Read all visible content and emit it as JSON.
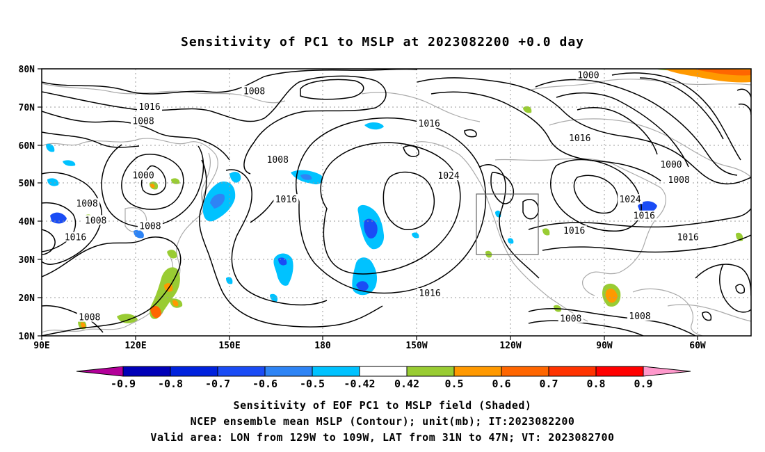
{
  "title": "Sensitivity of PC1 to MSLP at 2023082200 +0.0 day",
  "map": {
    "lat_labels": [
      "80N",
      "70N",
      "60N",
      "50N",
      "40N",
      "30N",
      "20N",
      "10N"
    ],
    "lon_labels": [
      "90E",
      "120E",
      "150E",
      "180",
      "150W",
      "120W",
      "90W",
      "60W"
    ],
    "extent": {
      "lon_min": 90,
      "lon_max": 317,
      "lat_min": 10,
      "lat_max": 80
    },
    "valid_box": {
      "lon_w": "129W",
      "lon_e": "109W",
      "lat_s": "31N",
      "lat_n": "47N"
    },
    "contour_labels": [
      {
        "text": "1008",
        "lon": 158,
        "lat": 74.1
      },
      {
        "text": "1016",
        "lon": 124.5,
        "lat": 70
      },
      {
        "text": "1008",
        "lon": 122.5,
        "lat": 66.2
      },
      {
        "text": "1000",
        "lon": 122.5,
        "lat": 52
      },
      {
        "text": "1008",
        "lon": 104.5,
        "lat": 44.6
      },
      {
        "text": "1008",
        "lon": 107.3,
        "lat": 40.2
      },
      {
        "text": "1016",
        "lon": 100.8,
        "lat": 35.8
      },
      {
        "text": "1008",
        "lon": 124.7,
        "lat": 38.7
      },
      {
        "text": "1008",
        "lon": 105.3,
        "lat": 14.8
      },
      {
        "text": "1008",
        "lon": 165.5,
        "lat": 56.1
      },
      {
        "text": "1016",
        "lon": 168.2,
        "lat": 45.7
      },
      {
        "text": "1016",
        "lon": 214,
        "lat": 65.6
      },
      {
        "text": "1024",
        "lon": 220.2,
        "lat": 51.9
      },
      {
        "text": "1016",
        "lon": 214.2,
        "lat": 21.1
      },
      {
        "text": "1000",
        "lon": 264.9,
        "lat": 78.3
      },
      {
        "text": "1016",
        "lon": 262.2,
        "lat": 61.8
      },
      {
        "text": "1000",
        "lon": 291.4,
        "lat": 54.8
      },
      {
        "text": "1008",
        "lon": 293.9,
        "lat": 50.8
      },
      {
        "text": "1024",
        "lon": 278.3,
        "lat": 45.7
      },
      {
        "text": "1016",
        "lon": 282.8,
        "lat": 41.4
      },
      {
        "text": "1016",
        "lon": 260.4,
        "lat": 37.5
      },
      {
        "text": "1016",
        "lon": 296.8,
        "lat": 35.8
      },
      {
        "text": "1008",
        "lon": 259.3,
        "lat": 14.5
      },
      {
        "text": "1008",
        "lon": 281.4,
        "lat": 15.1
      }
    ]
  },
  "colorbar": {
    "labels": [
      "-0.9",
      "-0.8",
      "-0.7",
      "-0.6",
      "-0.5",
      "-0.42",
      "0.42",
      "0.5",
      "0.6",
      "0.7",
      "0.8",
      "0.9"
    ],
    "colors": [
      "#b30099",
      "#0000b8",
      "#0022dd",
      "#1a4cf5",
      "#2e84f5",
      "#00c2ff",
      "#ffffff",
      "#99cc33",
      "#ff9900",
      "#ff6600",
      "#ff3300",
      "#ff0000",
      "#ff99cc"
    ]
  },
  "captions": {
    "line1": "Sensitivity of EOF PC1 to MSLP field (Shaded)",
    "line2": "NCEP ensemble mean MSLP (Contour); unit(mb); IT:2023082200",
    "line3": "Valid area: LON from 129W to 109W, LAT from 31N to 47N; VT: 2023082700"
  }
}
